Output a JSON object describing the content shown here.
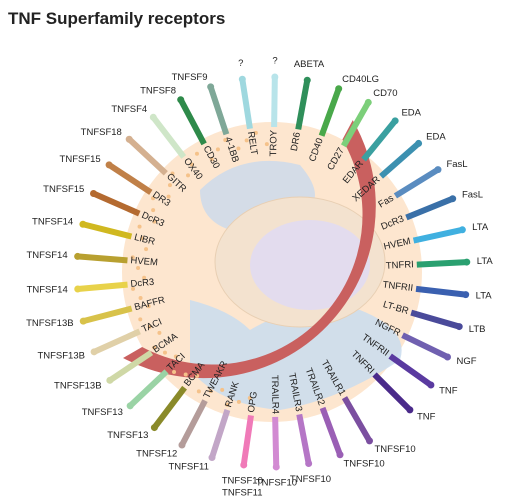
{
  "title": "TNF Superfamily receptors",
  "receptors": [
    {
      "name": "TRAILR1",
      "ligands": [
        "TNFSF10"
      ]
    },
    {
      "name": "TRAILR2",
      "ligands": [
        "TNFSF10"
      ]
    },
    {
      "name": "TRAILR3",
      "ligands": [
        "TNFSF10"
      ]
    },
    {
      "name": "TRAILR4",
      "ligands": [
        "TNFSF10"
      ]
    },
    {
      "name": "OPG",
      "ligands": [
        "TNFSF10",
        "TNFSF11"
      ]
    },
    {
      "name": "RANK",
      "ligands": [
        "TNFSF11"
      ]
    },
    {
      "name": "TWEAKR",
      "ligands": [
        "TNFSF12"
      ]
    },
    {
      "name": "BCMA",
      "ligands": [
        "TNFSF13"
      ]
    },
    {
      "name": "TACI",
      "ligands": [
        "TNFSF13"
      ]
    },
    {
      "name": "BCMA",
      "ligands": [
        "TNFSF13B"
      ]
    },
    {
      "name": "TACI",
      "ligands": [
        "TNFSF13B"
      ]
    },
    {
      "name": "BAFFR",
      "ligands": [
        "TNFSF13B"
      ]
    },
    {
      "name": "DcR3",
      "ligands": [
        "TNFSF14"
      ]
    },
    {
      "name": "HVEM",
      "ligands": [
        "TNFSF14"
      ]
    },
    {
      "name": "LIBR",
      "ligands": [
        "TNFSF14"
      ]
    },
    {
      "name": "DcR3",
      "ligands": [
        "TNFSF15"
      ]
    },
    {
      "name": "DR3",
      "ligands": [
        "TNFSF15"
      ]
    },
    {
      "name": "GITR",
      "ligands": [
        "TNFSF18"
      ]
    },
    {
      "name": "OX40",
      "ligands": [
        "TNFSF4"
      ]
    },
    {
      "name": "CD30",
      "ligands": [
        "TNFSF8"
      ]
    },
    {
      "name": "4-1BB",
      "ligands": [
        "TNFSF9"
      ]
    },
    {
      "name": "RELT",
      "ligands": [
        "?"
      ]
    },
    {
      "name": "TROY",
      "ligands": [
        "?"
      ]
    },
    {
      "name": "DR6",
      "ligands": [
        "ABETA"
      ]
    },
    {
      "name": "CD40",
      "ligands": [
        "CD40LG"
      ]
    },
    {
      "name": "CD27",
      "ligands": [
        "CD70"
      ]
    },
    {
      "name": "EDAR",
      "ligands": [
        "EDA"
      ]
    },
    {
      "name": "XEDAR",
      "ligands": [
        "EDA"
      ]
    },
    {
      "name": "Fas",
      "ligands": [
        "FasL"
      ]
    },
    {
      "name": "DcR3",
      "ligands": [
        "FasL"
      ]
    },
    {
      "name": "HVEM",
      "ligands": [
        "LTA"
      ]
    },
    {
      "name": "TNFRI",
      "ligands": [
        "LTA"
      ]
    },
    {
      "name": "TNFRII",
      "ligands": [
        "LTA"
      ]
    },
    {
      "name": "LT-BR",
      "ligands": [
        "LTB"
      ]
    },
    {
      "name": "NGFR",
      "ligands": [
        "NGF"
      ]
    },
    {
      "name": "TNFRII",
      "ligands": [
        "TNF"
      ]
    },
    {
      "name": "TNFRI",
      "ligands": [
        "TNF"
      ]
    }
  ]
}
